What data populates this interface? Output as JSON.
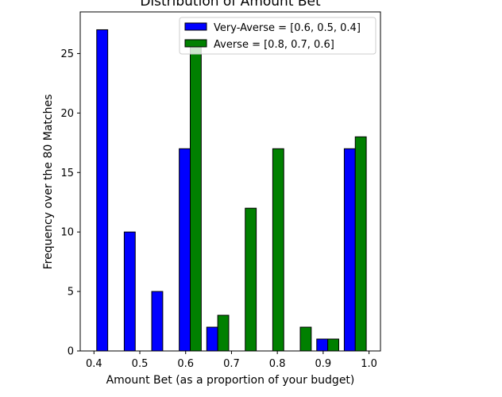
{
  "chart_data": {
    "type": "bar",
    "title": "Distribution of Amount Bet",
    "xlabel": "Amount Bet (as a proportion of your budget)",
    "ylabel": "Frequency over the 80 Matches",
    "xlim": [
      0.37,
      1.025
    ],
    "ylim": [
      0,
      28.5
    ],
    "xticks": [
      0.4,
      0.5,
      0.6,
      0.7,
      0.8,
      0.9,
      1.0
    ],
    "xtick_labels": [
      "0.4",
      "0.5",
      "0.6",
      "0.7",
      "0.8",
      "0.9",
      "1.0"
    ],
    "yticks": [
      0,
      5,
      10,
      15,
      20,
      25
    ],
    "ytick_labels": [
      "0",
      "5",
      "10",
      "15",
      "20",
      "25"
    ],
    "bin_edges": [
      0.4,
      0.46,
      0.52,
      0.58,
      0.64,
      0.7,
      0.76,
      0.82,
      0.88,
      0.94,
      1.0
    ],
    "legend_position": "top-right",
    "grid": false,
    "series": [
      {
        "name": "Very-Averse = [0.6, 0.5, 0.4]",
        "color": "#0000ff",
        "values": [
          27,
          10,
          5,
          17,
          2,
          0,
          0,
          0,
          1,
          17
        ]
      },
      {
        "name": "Averse = [0.8, 0.7, 0.6]",
        "color": "#008000",
        "values": [
          0,
          0,
          0,
          26,
          3,
          12,
          17,
          2,
          1,
          18
        ]
      }
    ]
  }
}
